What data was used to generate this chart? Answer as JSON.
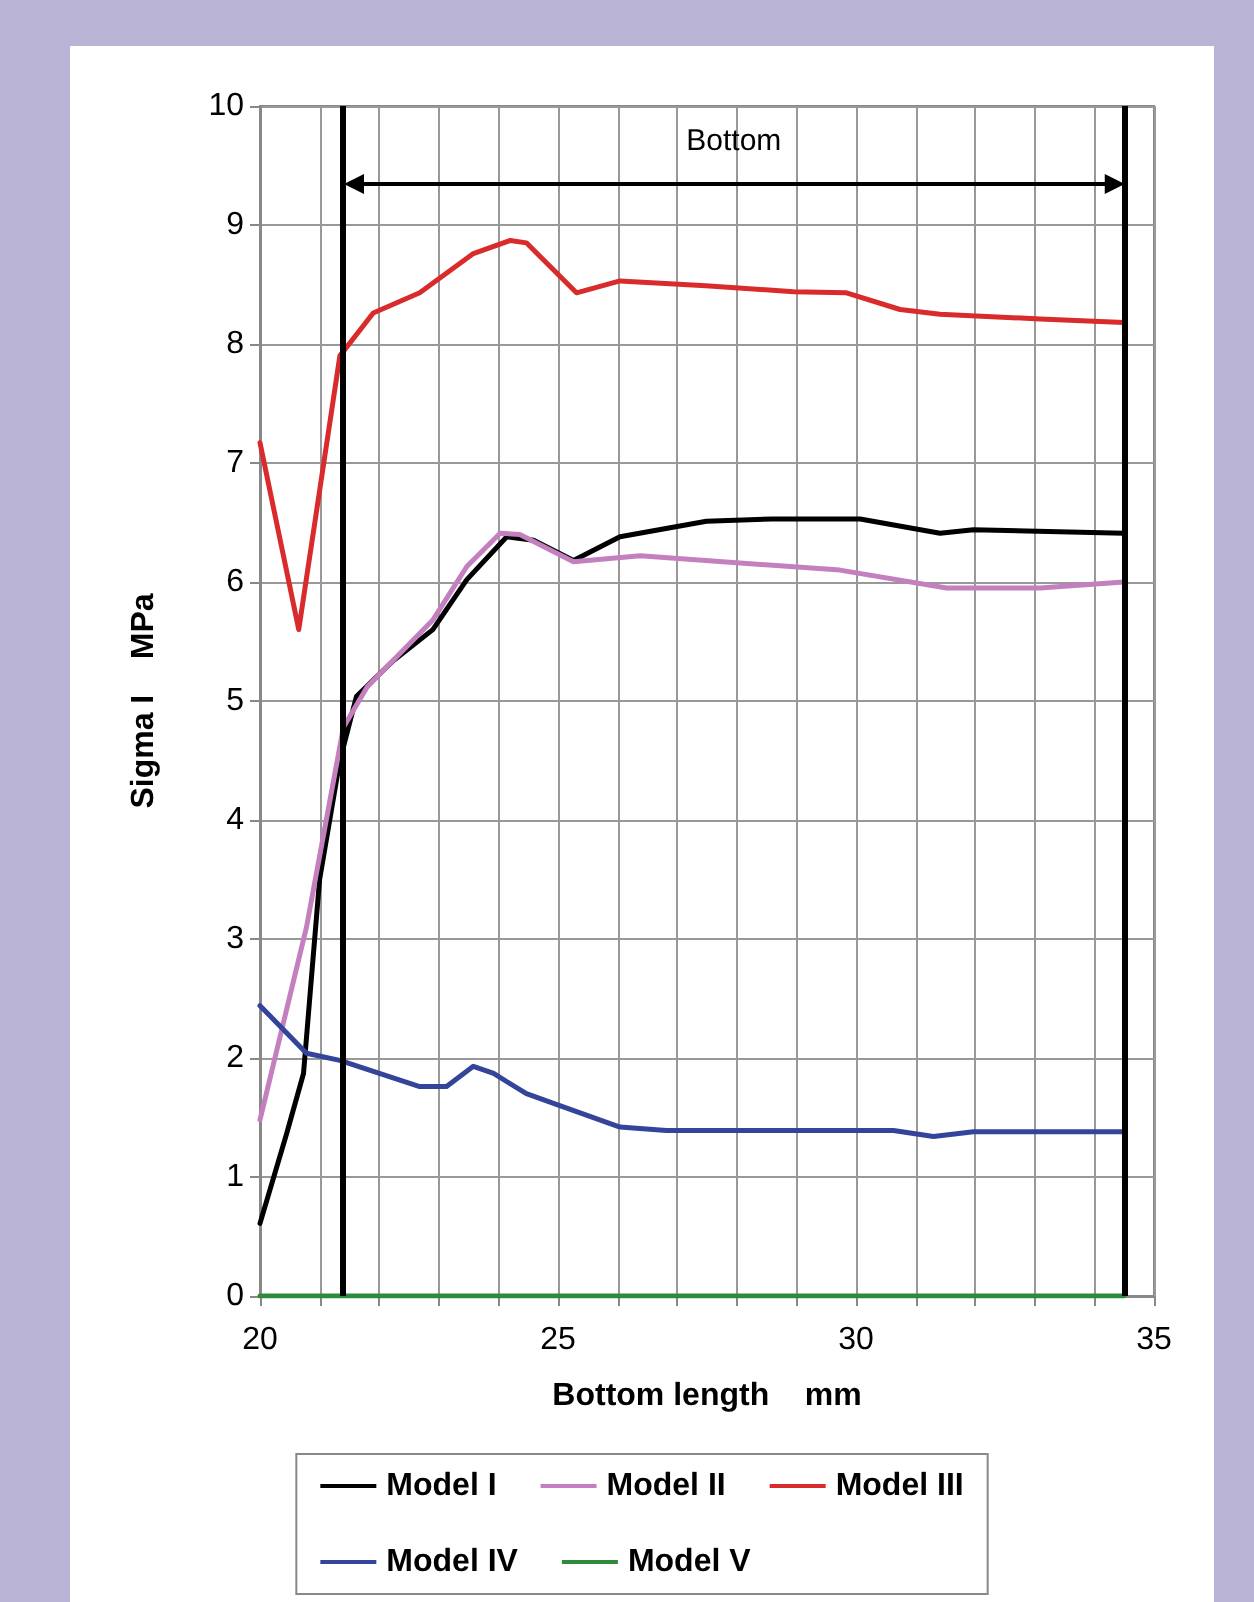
{
  "chart_data": {
    "type": "line",
    "xlabel": "Bottom length    mm",
    "ylabel": "Sigma I    MPa",
    "xlim": [
      20,
      35
    ],
    "xticks": [
      20,
      {
        "value": 21,
        "label": null
      },
      {
        "value": 22,
        "label": null
      },
      {
        "value": 23,
        "label": null
      },
      {
        "value": 24,
        "label": null
      },
      25,
      {
        "value": 26,
        "label": null
      },
      {
        "value": 27,
        "label": null
      },
      {
        "value": 28,
        "label": null
      },
      {
        "value": 29,
        "label": null
      },
      30,
      {
        "value": 31,
        "label": null
      },
      {
        "value": 32,
        "label": null
      },
      {
        "value": 33,
        "label": null
      },
      {
        "value": 34,
        "label": null
      },
      35
    ],
    "ylim": [
      0,
      10
    ],
    "yticks": [
      0,
      1,
      2,
      3,
      4,
      5,
      6,
      7,
      8,
      9,
      10
    ],
    "grid": true,
    "legend": "bottom",
    "line_style": "solid",
    "marker": "none",
    "annotations": [
      "Bottom"
    ],
    "ref_lines": [
      {
        "axis": "x",
        "value": 21.4,
        "color": "#000000"
      },
      {
        "axis": "x",
        "value": 34.5,
        "color": "#000000"
      }
    ],
    "series": [
      {
        "name": "Model I",
        "color": "#000000",
        "x": [
          20,
          20.45,
          20.73,
          21.0,
          21.34,
          21.62,
          22.24,
          22.9,
          23.47,
          24.14,
          24.59,
          25.26,
          26.04,
          27.49,
          28.6,
          30.07,
          31.41,
          31.97,
          34.49
        ],
        "values": [
          0.61,
          1.37,
          1.87,
          3.5,
          4.5,
          5.04,
          5.34,
          5.6,
          6.02,
          6.38,
          6.35,
          6.18,
          6.38,
          6.51,
          6.53,
          6.53,
          6.41,
          6.44,
          6.41
        ]
      },
      {
        "name": "Model II",
        "color": "#c47fbf",
        "x": [
          20,
          20.78,
          21.4,
          21.8,
          22.9,
          23.47,
          24.03,
          24.36,
          25.26,
          26.38,
          29.73,
          31.52,
          33.09,
          34.49
        ],
        "values": [
          1.48,
          3.1,
          4.78,
          5.12,
          5.68,
          6.13,
          6.41,
          6.4,
          6.17,
          6.22,
          6.1,
          5.95,
          5.95,
          6.0
        ]
      },
      {
        "name": "Model III",
        "color": "#d92b2b",
        "x": [
          20,
          20.65,
          21.34,
          21.9,
          22.68,
          23.58,
          24.2,
          24.47,
          25.31,
          26.04,
          27.48,
          28.95,
          29.84,
          30.74,
          31.41,
          33.09,
          34.49
        ],
        "values": [
          7.17,
          5.6,
          7.9,
          8.26,
          8.43,
          8.76,
          8.87,
          8.85,
          8.43,
          8.53,
          8.49,
          8.44,
          8.43,
          8.29,
          8.25,
          8.21,
          8.18
        ]
      },
      {
        "name": "Model IV",
        "color": "#33449a",
        "x": [
          20,
          20.78,
          21.34,
          22.68,
          23.13,
          23.58,
          23.92,
          24.47,
          25.03,
          26.04,
          26.82,
          30.63,
          31.3,
          31.97,
          34.49
        ],
        "values": [
          2.44,
          2.04,
          1.98,
          1.76,
          1.76,
          1.93,
          1.87,
          1.7,
          1.6,
          1.42,
          1.39,
          1.39,
          1.34,
          1.38,
          1.38
        ]
      },
      {
        "name": "Model V",
        "color": "#2e8b3e",
        "x": [
          20,
          34.49
        ],
        "values": [
          0,
          0
        ]
      }
    ]
  }
}
